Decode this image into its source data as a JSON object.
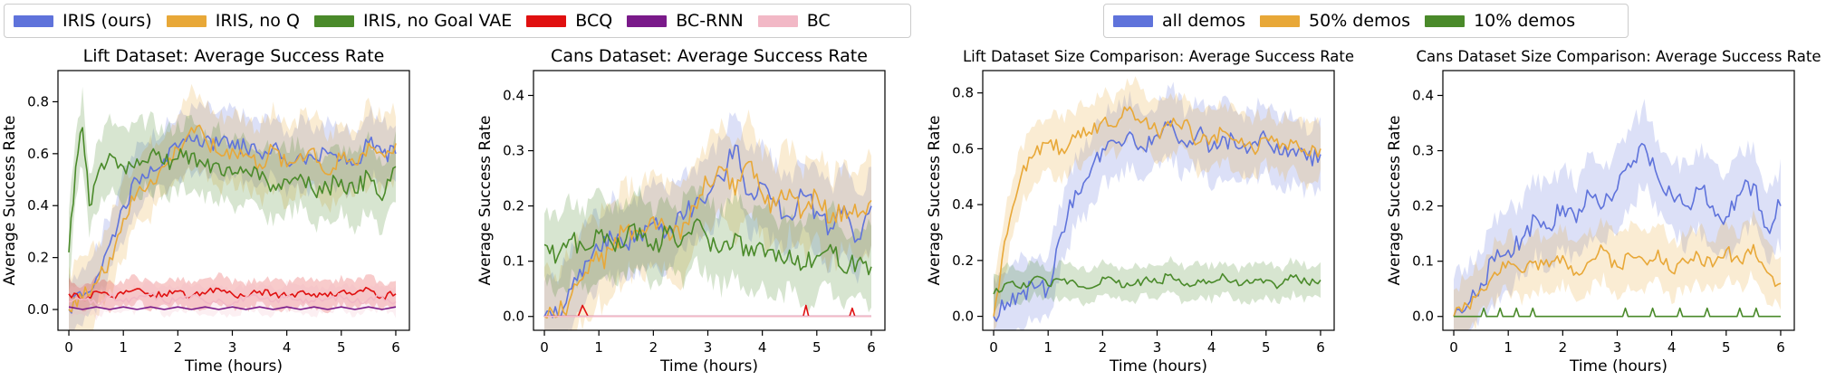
{
  "legend_left": [
    {
      "label": "IRIS (ours)",
      "color": "#5f73db"
    },
    {
      "label": "IRIS, no Q",
      "color": "#e8a838"
    },
    {
      "label": "IRIS, no Goal VAE",
      "color": "#4a8a2a"
    },
    {
      "label": "BCQ",
      "color": "#e01010"
    },
    {
      "label": "BC-RNN",
      "color": "#7a1a8a"
    },
    {
      "label": "BC",
      "color": "#f2b8c6"
    }
  ],
  "legend_right": [
    {
      "label": "all demos",
      "color": "#5f73db"
    },
    {
      "label": "50% demos",
      "color": "#e8a838"
    },
    {
      "label": "10% demos",
      "color": "#4a8a2a"
    }
  ],
  "chart_data": [
    {
      "type": "line",
      "title": "Lift Dataset: Average Success Rate",
      "xlabel": "Time (hours)",
      "ylabel": "Average Success Rate",
      "xlim": [
        -0.2,
        6.25
      ],
      "ylim": [
        -0.08,
        0.92
      ],
      "xticks": [
        0,
        1,
        2,
        3,
        4,
        5,
        6
      ],
      "yticks": [
        0.0,
        0.2,
        0.4,
        0.6,
        0.8
      ],
      "grid": false,
      "series": [
        {
          "name": "IRIS (ours)",
          "color": "#5f73db",
          "band": 0.12,
          "x": [
            0,
            0.25,
            0.5,
            0.75,
            1,
            1.25,
            1.5,
            1.75,
            2,
            2.25,
            2.5,
            2.75,
            3,
            3.25,
            3.5,
            3.75,
            4,
            4.25,
            4.5,
            4.75,
            5,
            5.25,
            5.5,
            5.75,
            6
          ],
          "y": [
            0.0,
            0.05,
            0.12,
            0.25,
            0.4,
            0.5,
            0.55,
            0.58,
            0.62,
            0.65,
            0.66,
            0.63,
            0.65,
            0.62,
            0.6,
            0.63,
            0.56,
            0.6,
            0.58,
            0.6,
            0.58,
            0.56,
            0.64,
            0.6,
            0.6
          ]
        },
        {
          "name": "IRIS, no Q",
          "color": "#e8a838",
          "band": 0.14,
          "x": [
            0,
            0.25,
            0.5,
            0.75,
            1,
            1.25,
            1.5,
            1.75,
            2,
            2.25,
            2.5,
            2.75,
            3,
            3.25,
            3.5,
            3.75,
            4,
            4.25,
            4.5,
            4.75,
            5,
            5.25,
            5.5,
            5.75,
            6
          ],
          "y": [
            0.0,
            0.04,
            0.1,
            0.2,
            0.35,
            0.45,
            0.5,
            0.55,
            0.62,
            0.7,
            0.66,
            0.6,
            0.62,
            0.6,
            0.56,
            0.62,
            0.55,
            0.6,
            0.62,
            0.52,
            0.58,
            0.56,
            0.64,
            0.6,
            0.64
          ]
        },
        {
          "name": "IRIS, no Goal VAE",
          "color": "#4a8a2a",
          "band": 0.13,
          "x": [
            0,
            0.125,
            0.25,
            0.375,
            0.5,
            0.75,
            1,
            1.25,
            1.5,
            1.75,
            2,
            2.25,
            2.5,
            2.75,
            3,
            3.25,
            3.5,
            3.75,
            4,
            4.25,
            4.5,
            4.75,
            5,
            5.25,
            5.5,
            5.75,
            6
          ],
          "y": [
            0.22,
            0.55,
            0.7,
            0.4,
            0.5,
            0.6,
            0.55,
            0.58,
            0.6,
            0.56,
            0.58,
            0.6,
            0.55,
            0.56,
            0.52,
            0.54,
            0.5,
            0.48,
            0.5,
            0.52,
            0.45,
            0.47,
            0.5,
            0.45,
            0.52,
            0.42,
            0.55
          ]
        },
        {
          "name": "BCQ",
          "color": "#e01010",
          "band": 0.05,
          "x": [
            0,
            0.25,
            0.5,
            0.75,
            1,
            1.25,
            1.5,
            1.75,
            2,
            2.25,
            2.5,
            2.75,
            3,
            3.25,
            3.5,
            3.75,
            4,
            4.25,
            4.5,
            4.75,
            5,
            5.25,
            5.5,
            5.75,
            6
          ],
          "y": [
            0.06,
            0.04,
            0.07,
            0.05,
            0.06,
            0.08,
            0.05,
            0.06,
            0.07,
            0.05,
            0.06,
            0.08,
            0.06,
            0.05,
            0.07,
            0.06,
            0.05,
            0.07,
            0.06,
            0.05,
            0.07,
            0.06,
            0.08,
            0.05,
            0.06
          ]
        },
        {
          "name": "BC-RNN",
          "color": "#7a1a8a",
          "band": 0.0,
          "x": [
            0,
            0.25,
            0.5,
            0.75,
            1,
            1.25,
            1.5,
            1.75,
            2,
            2.25,
            2.5,
            2.75,
            3,
            3.25,
            3.5,
            3.75,
            4,
            4.25,
            4.5,
            4.75,
            5,
            5.25,
            5.5,
            5.75,
            6
          ],
          "y": [
            0.01,
            0.0,
            0.01,
            0.0,
            0.01,
            0.0,
            0.01,
            0.0,
            0.01,
            0.0,
            0.01,
            0.0,
            0.01,
            0.0,
            0.01,
            0.0,
            0.01,
            0.0,
            0.01,
            0.0,
            0.01,
            0.0,
            0.01,
            0.0,
            0.01
          ]
        },
        {
          "name": "BC",
          "color": "#f2b8c6",
          "band": 0.05,
          "x": [
            0,
            0.25,
            0.5,
            0.75,
            1,
            1.25,
            1.5,
            1.75,
            2,
            2.25,
            2.5,
            2.75,
            3,
            3.25,
            3.5,
            3.75,
            4,
            4.25,
            4.5,
            4.75,
            5,
            5.25,
            5.5,
            5.75,
            6
          ],
          "y": [
            0.03,
            0.04,
            0.02,
            0.05,
            0.03,
            0.04,
            0.06,
            0.03,
            0.04,
            0.05,
            0.03,
            0.04,
            0.02,
            0.05,
            0.04,
            0.03,
            0.05,
            0.04,
            0.03,
            0.04,
            0.05,
            0.03,
            0.04,
            0.05,
            0.03
          ]
        }
      ]
    },
    {
      "type": "line",
      "title": "Cans Dataset: Average Success Rate",
      "xlabel": "Time (hours)",
      "ylabel": "Average Success Rate",
      "xlim": [
        -0.2,
        6.25
      ],
      "ylim": [
        -0.025,
        0.445
      ],
      "xticks": [
        0,
        1,
        2,
        3,
        4,
        5,
        6
      ],
      "yticks": [
        0.0,
        0.1,
        0.2,
        0.3,
        0.4
      ],
      "grid": false,
      "series": [
        {
          "name": "IRIS (ours)",
          "color": "#5f73db",
          "band": 0.07,
          "x": [
            0,
            0.25,
            0.5,
            0.75,
            1,
            1.25,
            1.5,
            1.75,
            2,
            2.25,
            2.5,
            2.75,
            3,
            3.25,
            3.5,
            3.75,
            4,
            4.25,
            4.5,
            4.75,
            5,
            5.25,
            5.5,
            5.75,
            6
          ],
          "y": [
            0.0,
            0.0,
            0.05,
            0.1,
            0.12,
            0.14,
            0.13,
            0.15,
            0.17,
            0.15,
            0.19,
            0.2,
            0.22,
            0.25,
            0.31,
            0.22,
            0.24,
            0.2,
            0.18,
            0.22,
            0.19,
            0.16,
            0.2,
            0.14,
            0.2
          ]
        },
        {
          "name": "IRIS, no Q",
          "color": "#e8a838",
          "band": 0.08,
          "x": [
            0,
            0.25,
            0.5,
            0.75,
            1,
            1.25,
            1.5,
            1.75,
            2,
            2.25,
            2.5,
            2.75,
            3,
            3.25,
            3.5,
            3.75,
            4,
            4.25,
            4.5,
            4.75,
            5,
            5.25,
            5.5,
            5.75,
            6
          ],
          "y": [
            0.0,
            0.0,
            0.04,
            0.08,
            0.1,
            0.12,
            0.16,
            0.15,
            0.18,
            0.16,
            0.14,
            0.2,
            0.24,
            0.27,
            0.22,
            0.28,
            0.22,
            0.2,
            0.23,
            0.19,
            0.22,
            0.17,
            0.2,
            0.18,
            0.21
          ]
        },
        {
          "name": "IRIS, no Goal VAE",
          "color": "#4a8a2a",
          "band": 0.07,
          "x": [
            0,
            0.25,
            0.5,
            0.75,
            1,
            1.25,
            1.5,
            1.75,
            2,
            2.25,
            2.5,
            2.75,
            3,
            3.25,
            3.5,
            3.75,
            4,
            4.25,
            4.5,
            4.75,
            5,
            5.25,
            5.5,
            5.75,
            6
          ],
          "y": [
            0.13,
            0.11,
            0.14,
            0.12,
            0.15,
            0.13,
            0.14,
            0.16,
            0.12,
            0.15,
            0.13,
            0.17,
            0.14,
            0.12,
            0.15,
            0.11,
            0.13,
            0.1,
            0.12,
            0.09,
            0.11,
            0.13,
            0.08,
            0.1,
            0.09
          ]
        },
        {
          "name": "BCQ",
          "color": "#e01010",
          "band": 0.0,
          "x": [
            0,
            0.5,
            0.62,
            0.7,
            0.8,
            1,
            2,
            3,
            4,
            4.75,
            4.8,
            4.85,
            5,
            5.6,
            5.65,
            5.7,
            6
          ],
          "y": [
            0,
            0,
            0,
            0.02,
            0,
            0,
            0,
            0,
            0,
            0,
            0.02,
            0,
            0,
            0,
            0.015,
            0,
            0
          ]
        },
        {
          "name": "BC-RNN",
          "color": "#7a1a8a",
          "band": 0.0,
          "x": [
            0,
            1,
            2,
            3,
            4,
            5,
            6
          ],
          "y": [
            0,
            0,
            0,
            0,
            0,
            0,
            0
          ]
        },
        {
          "name": "BC",
          "color": "#f2b8c6",
          "band": 0.0,
          "x": [
            0,
            1,
            2,
            3,
            4,
            5,
            6
          ],
          "y": [
            0,
            0,
            0,
            0,
            0,
            0,
            0
          ]
        }
      ]
    },
    {
      "type": "line",
      "title": "Lift Dataset Size Comparison: Average Success Rate",
      "xlabel": "Time (hours)",
      "ylabel": "Average Success Rate",
      "xlim": [
        -0.2,
        6.25
      ],
      "ylim": [
        -0.05,
        0.88
      ],
      "xticks": [
        0,
        1,
        2,
        3,
        4,
        5,
        6
      ],
      "yticks": [
        0.0,
        0.2,
        0.4,
        0.6,
        0.8
      ],
      "grid": false,
      "series": [
        {
          "name": "all demos",
          "color": "#5f73db",
          "band": 0.12,
          "x": [
            0,
            0.25,
            0.5,
            0.75,
            1,
            1.25,
            1.5,
            1.75,
            2,
            2.25,
            2.5,
            2.75,
            3,
            3.25,
            3.5,
            3.75,
            4,
            4.25,
            4.5,
            4.75,
            5,
            5.25,
            5.5,
            5.75,
            6
          ],
          "y": [
            0.0,
            0.05,
            0.08,
            0.1,
            0.1,
            0.3,
            0.45,
            0.5,
            0.6,
            0.62,
            0.66,
            0.6,
            0.65,
            0.7,
            0.62,
            0.66,
            0.6,
            0.64,
            0.6,
            0.62,
            0.64,
            0.58,
            0.6,
            0.56,
            0.58
          ]
        },
        {
          "name": "50% demos",
          "color": "#e8a838",
          "band": 0.1,
          "x": [
            0,
            0.15,
            0.3,
            0.5,
            0.75,
            1,
            1.25,
            1.5,
            1.75,
            2,
            2.25,
            2.5,
            2.75,
            3,
            3.25,
            3.5,
            3.75,
            4,
            4.25,
            4.5,
            4.75,
            5,
            5.25,
            5.5,
            5.75,
            6
          ],
          "y": [
            0.0,
            0.2,
            0.35,
            0.5,
            0.58,
            0.62,
            0.6,
            0.64,
            0.66,
            0.7,
            0.68,
            0.75,
            0.7,
            0.66,
            0.68,
            0.7,
            0.62,
            0.64,
            0.66,
            0.62,
            0.6,
            0.64,
            0.6,
            0.62,
            0.58,
            0.6
          ]
        },
        {
          "name": "10% demos",
          "color": "#4a8a2a",
          "band": 0.06,
          "x": [
            0,
            0.25,
            0.5,
            0.75,
            1,
            1.25,
            1.5,
            1.75,
            2,
            2.25,
            2.5,
            2.75,
            3,
            3.25,
            3.5,
            3.75,
            4,
            4.25,
            4.5,
            4.75,
            5,
            5.25,
            5.5,
            5.75,
            6
          ],
          "y": [
            0.08,
            0.12,
            0.1,
            0.14,
            0.11,
            0.13,
            0.12,
            0.1,
            0.14,
            0.12,
            0.11,
            0.13,
            0.12,
            0.15,
            0.11,
            0.13,
            0.12,
            0.14,
            0.11,
            0.12,
            0.13,
            0.11,
            0.14,
            0.12,
            0.13
          ]
        }
      ]
    },
    {
      "type": "line",
      "title": "Cans Dataset Size Comparison: Average Success Rate",
      "xlabel": "Time (hours)",
      "ylabel": "Average Success Rate",
      "xlim": [
        -0.2,
        6.25
      ],
      "ylim": [
        -0.025,
        0.445
      ],
      "xticks": [
        0,
        1,
        2,
        3,
        4,
        5,
        6
      ],
      "yticks": [
        0.0,
        0.1,
        0.2,
        0.3,
        0.4
      ],
      "grid": false,
      "series": [
        {
          "name": "all demos",
          "color": "#5f73db",
          "band": 0.07,
          "x": [
            0,
            0.25,
            0.5,
            0.75,
            1,
            1.25,
            1.5,
            1.75,
            2,
            2.25,
            2.5,
            2.75,
            3,
            3.25,
            3.5,
            3.75,
            4,
            4.25,
            4.5,
            4.75,
            5,
            5.25,
            5.5,
            5.75,
            6
          ],
          "y": [
            0.0,
            0.02,
            0.06,
            0.1,
            0.12,
            0.14,
            0.18,
            0.16,
            0.2,
            0.17,
            0.22,
            0.2,
            0.23,
            0.27,
            0.31,
            0.25,
            0.22,
            0.2,
            0.23,
            0.2,
            0.18,
            0.22,
            0.24,
            0.16,
            0.2
          ]
        },
        {
          "name": "50% demos",
          "color": "#e8a838",
          "band": 0.05,
          "x": [
            0,
            0.25,
            0.5,
            0.75,
            1,
            1.25,
            1.5,
            1.75,
            2,
            2.25,
            2.5,
            2.75,
            3,
            3.25,
            3.5,
            3.75,
            4,
            4.25,
            4.5,
            4.75,
            5,
            5.25,
            5.5,
            5.75,
            6
          ],
          "y": [
            0.0,
            0.02,
            0.05,
            0.08,
            0.1,
            0.08,
            0.1,
            0.09,
            0.11,
            0.08,
            0.1,
            0.12,
            0.09,
            0.11,
            0.1,
            0.12,
            0.08,
            0.1,
            0.11,
            0.09,
            0.12,
            0.1,
            0.13,
            0.08,
            0.06
          ]
        },
        {
          "name": "10% demos",
          "color": "#4a8a2a",
          "band": 0.0,
          "x": [
            0,
            0.5,
            0.55,
            0.6,
            0.8,
            0.85,
            0.9,
            1.1,
            1.15,
            1.2,
            1.4,
            1.45,
            1.5,
            2,
            3,
            3.1,
            3.15,
            3.2,
            3.6,
            3.65,
            3.7,
            4.1,
            4.15,
            4.2,
            4.6,
            4.65,
            4.7,
            5,
            5.2,
            5.25,
            5.3,
            5.5,
            5.55,
            5.6,
            6
          ],
          "y": [
            0,
            0,
            0.015,
            0,
            0,
            0.015,
            0,
            0,
            0.015,
            0,
            0,
            0.015,
            0,
            0,
            0,
            0,
            0.015,
            0,
            0,
            0.015,
            0,
            0,
            0.015,
            0,
            0,
            0.015,
            0,
            0,
            0,
            0.015,
            0,
            0,
            0.015,
            0,
            0
          ]
        }
      ]
    }
  ]
}
